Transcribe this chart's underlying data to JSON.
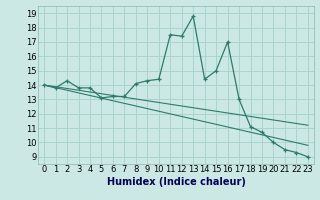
{
  "xlabel": "Humidex (Indice chaleur)",
  "background_color": "#cce8e4",
  "grid_color": "#aad4cc",
  "line_color": "#2d7a6e",
  "xlim": [
    -0.5,
    23.5
  ],
  "ylim": [
    8.5,
    19.5
  ],
  "yticks": [
    9,
    10,
    11,
    12,
    13,
    14,
    15,
    16,
    17,
    18,
    19
  ],
  "xticks": [
    0,
    1,
    2,
    3,
    4,
    5,
    6,
    7,
    8,
    9,
    10,
    11,
    12,
    13,
    14,
    15,
    16,
    17,
    18,
    19,
    20,
    21,
    22,
    23
  ],
  "main_curve_x": [
    0,
    1,
    2,
    3,
    4,
    5,
    6,
    7,
    8,
    9,
    10,
    11,
    12,
    13,
    14,
    15,
    16,
    17,
    18,
    19,
    20,
    21,
    22,
    23
  ],
  "main_curve_y": [
    14.0,
    13.8,
    14.3,
    13.8,
    13.8,
    13.1,
    13.2,
    13.2,
    14.1,
    14.3,
    14.4,
    17.5,
    17.4,
    18.8,
    14.4,
    15.0,
    17.0,
    13.0,
    11.1,
    10.7,
    10.0,
    9.5,
    9.3,
    9.0
  ],
  "reg_line1_x": [
    0,
    23
  ],
  "reg_line1_y": [
    14.0,
    11.2
  ],
  "reg_line2_x": [
    0,
    23
  ],
  "reg_line2_y": [
    14.0,
    9.8
  ],
  "font_size_xlabel": 7,
  "font_size_ticks": 6
}
